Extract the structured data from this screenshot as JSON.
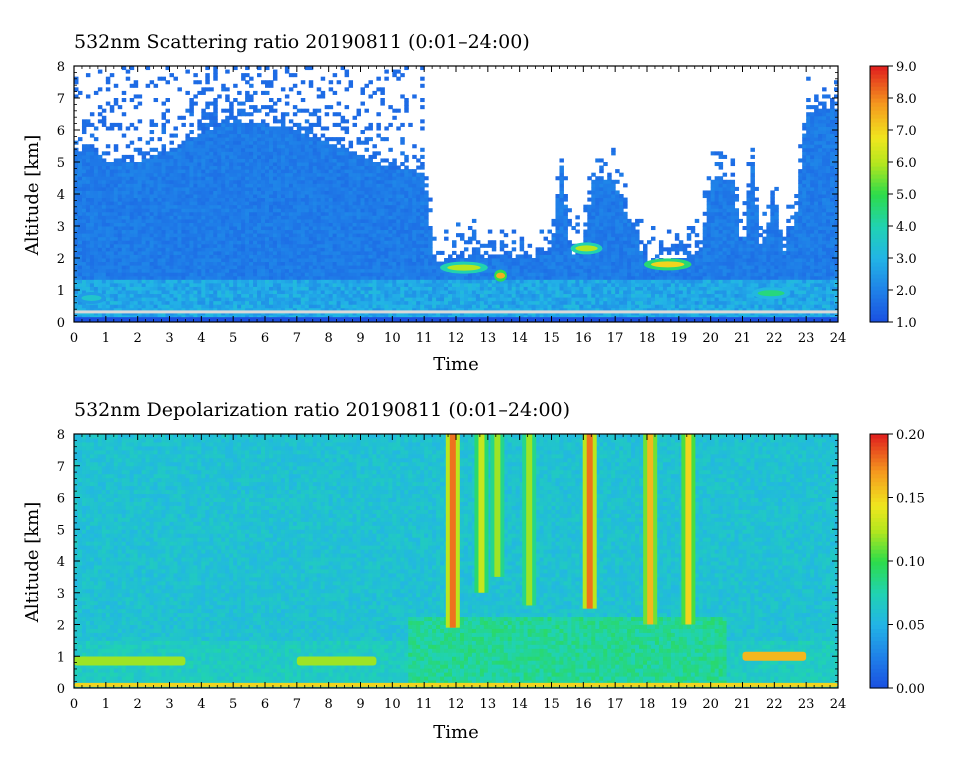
{
  "chart_data": [
    {
      "type": "heatmap",
      "title": "532nm Scattering ratio  20190811 (0:01–24:00)",
      "xlabel": "Time",
      "ylabel": "Altitude [km]",
      "xlim": [
        0,
        24
      ],
      "ylim": [
        0,
        8
      ],
      "x_ticks": [
        "0",
        "1",
        "2",
        "3",
        "4",
        "5",
        "6",
        "7",
        "8",
        "9",
        "10",
        "11",
        "12",
        "13",
        "14",
        "15",
        "16",
        "17",
        "18",
        "19",
        "20",
        "21",
        "22",
        "23",
        "24"
      ],
      "y_ticks": [
        "0",
        "1",
        "2",
        "3",
        "4",
        "5",
        "6",
        "7",
        "8"
      ],
      "colorbar": {
        "min": 1.0,
        "max": 9.0,
        "ticks": [
          "1.0",
          "2.0",
          "3.0",
          "4.0",
          "5.0",
          "6.0",
          "7.0",
          "8.0",
          "9.0"
        ]
      },
      "cloud_top_km": [
        [
          0,
          5.3
        ],
        [
          0.5,
          5.5
        ],
        [
          1,
          5.0
        ],
        [
          2,
          5.0
        ],
        [
          3,
          5.3
        ],
        [
          4,
          5.9
        ],
        [
          5,
          6.3
        ],
        [
          6,
          6.2
        ],
        [
          7,
          6.0
        ],
        [
          8,
          5.6
        ],
        [
          9,
          5.2
        ],
        [
          10,
          4.8
        ],
        [
          11,
          4.7
        ],
        [
          11.3,
          1.9
        ],
        [
          12,
          1.9
        ],
        [
          12.5,
          2.1
        ],
        [
          13,
          2.0
        ],
        [
          14,
          2.0
        ],
        [
          15,
          2.1
        ],
        [
          15.3,
          5.0
        ],
        [
          15.6,
          2.1
        ],
        [
          16,
          2.3
        ],
        [
          16.3,
          4.5
        ],
        [
          16.9,
          4.5
        ],
        [
          17.7,
          2.5
        ],
        [
          18,
          1.8
        ],
        [
          19,
          2.0
        ],
        [
          19.7,
          2.2
        ],
        [
          20,
          4.5
        ],
        [
          20.7,
          4.5
        ],
        [
          21,
          2.1
        ],
        [
          21.3,
          5.0
        ],
        [
          21.6,
          2.1
        ],
        [
          22,
          4.0
        ],
        [
          22.3,
          2.2
        ],
        [
          22.7,
          3.5
        ],
        [
          23.0,
          6.5
        ],
        [
          24,
          6.7
        ]
      ],
      "features": [
        {
          "x0": 0.1,
          "x1": 1.0,
          "y": 0.75,
          "value": 3.5
        },
        {
          "x0": 11.5,
          "x1": 13.0,
          "y": 1.7,
          "value": 6.0
        },
        {
          "x0": 13.2,
          "x1": 13.6,
          "y": 1.45,
          "value": 7.5
        },
        {
          "x0": 15.6,
          "x1": 16.6,
          "y": 2.3,
          "value": 6.0
        },
        {
          "x0": 17.9,
          "x1": 19.4,
          "y": 1.8,
          "value": 7.0
        },
        {
          "x0": 21.3,
          "x1": 22.5,
          "y": 0.9,
          "value": 4.5
        }
      ]
    },
    {
      "type": "heatmap",
      "title": "532nm Depolarization ratio  20190811 (0:01–24:00)",
      "xlabel": "Time",
      "ylabel": "Altitude [km]",
      "xlim": [
        0,
        24
      ],
      "ylim": [
        0,
        8
      ],
      "x_ticks": [
        "0",
        "1",
        "2",
        "3",
        "4",
        "5",
        "6",
        "7",
        "8",
        "9",
        "10",
        "11",
        "12",
        "13",
        "14",
        "15",
        "16",
        "17",
        "18",
        "19",
        "20",
        "21",
        "22",
        "23",
        "24"
      ],
      "y_ticks": [
        "0",
        "1",
        "2",
        "3",
        "4",
        "5",
        "6",
        "7",
        "8"
      ],
      "colorbar": {
        "min": 0.0,
        "max": 0.2,
        "ticks": [
          "0.00",
          "0.05",
          "0.10",
          "0.15",
          "0.20"
        ]
      },
      "streaks": [
        {
          "x": 11.9,
          "y_top": 8.0,
          "y_bottom": 1.9,
          "value": 0.18
        },
        {
          "x": 12.8,
          "y_top": 8.0,
          "y_bottom": 3.0,
          "value": 0.13
        },
        {
          "x": 13.3,
          "y_top": 8.0,
          "y_bottom": 3.5,
          "value": 0.12
        },
        {
          "x": 14.3,
          "y_top": 8.0,
          "y_bottom": 2.6,
          "value": 0.12
        },
        {
          "x": 16.2,
          "y_top": 8.0,
          "y_bottom": 2.5,
          "value": 0.18
        },
        {
          "x": 18.1,
          "y_top": 8.0,
          "y_bottom": 2.0,
          "value": 0.16
        },
        {
          "x": 19.3,
          "y_top": 8.0,
          "y_bottom": 2.0,
          "value": 0.15
        }
      ],
      "features": [
        {
          "x0": 0.0,
          "x1": 3.5,
          "y": 0.85,
          "value": 0.12
        },
        {
          "x0": 7.0,
          "x1": 9.5,
          "y": 0.85,
          "value": 0.12
        },
        {
          "x0": 21.0,
          "x1": 23.0,
          "y": 1.0,
          "value": 0.16
        },
        {
          "x0": 0.0,
          "x1": 24.0,
          "y": 0.1,
          "value": 0.15
        }
      ]
    }
  ]
}
